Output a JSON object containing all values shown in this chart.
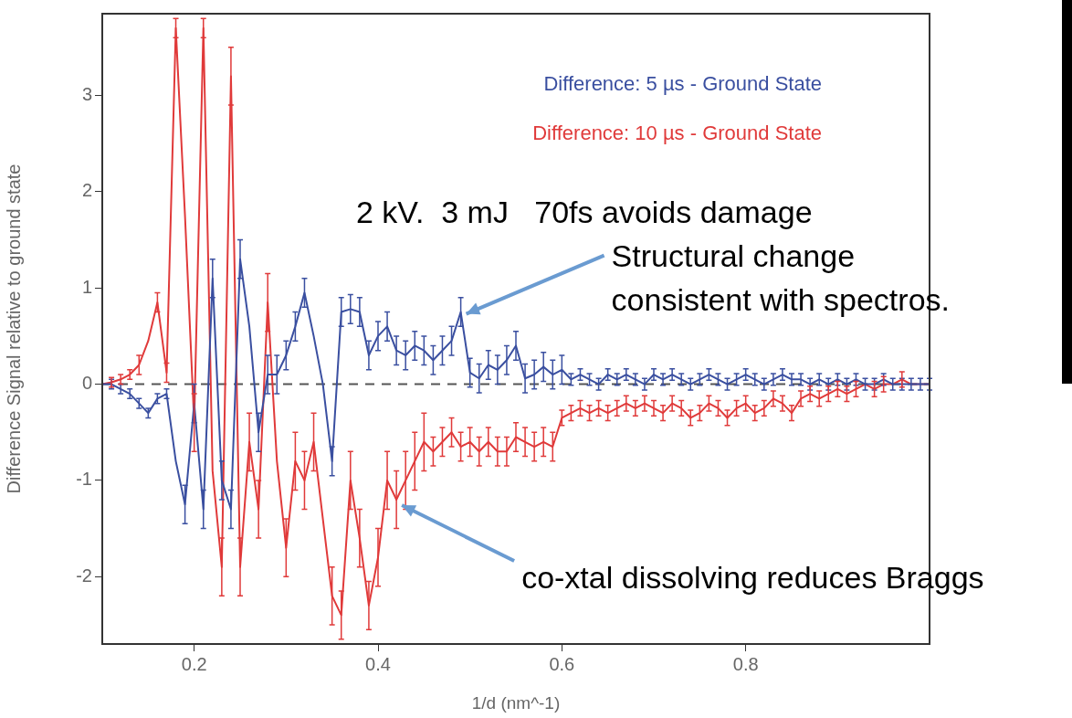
{
  "chart_data": {
    "type": "line",
    "xlabel": "1/d (nm^-1)",
    "ylabel": "Difference Signal relative to ground state",
    "x": [
      0.1,
      0.11,
      0.12,
      0.13,
      0.14,
      0.15,
      0.16,
      0.17,
      0.18,
      0.19,
      0.2,
      0.21,
      0.22,
      0.23,
      0.24,
      0.25,
      0.26,
      0.27,
      0.28,
      0.29,
      0.3,
      0.31,
      0.32,
      0.33,
      0.34,
      0.35,
      0.36,
      0.37,
      0.38,
      0.39,
      0.4,
      0.41,
      0.42,
      0.43,
      0.44,
      0.45,
      0.46,
      0.47,
      0.48,
      0.49,
      0.5,
      0.51,
      0.52,
      0.53,
      0.54,
      0.55,
      0.56,
      0.57,
      0.58,
      0.59,
      0.6,
      0.61,
      0.62,
      0.63,
      0.64,
      0.65,
      0.66,
      0.67,
      0.68,
      0.69,
      0.7,
      0.71,
      0.72,
      0.73,
      0.74,
      0.75,
      0.76,
      0.77,
      0.78,
      0.79,
      0.8,
      0.81,
      0.82,
      0.83,
      0.84,
      0.85,
      0.86,
      0.87,
      0.88,
      0.89,
      0.9,
      0.91,
      0.92,
      0.93,
      0.94,
      0.95,
      0.96,
      0.97,
      0.98,
      0.99,
      1.0
    ],
    "series": [
      {
        "name": "Difference: 5 µs - Ground State",
        "color": "#3a4fa0",
        "values": [
          0.0,
          0.0,
          -0.05,
          -0.1,
          -0.2,
          -0.3,
          -0.15,
          -0.1,
          -0.8,
          -1.25,
          -0.2,
          -1.3,
          1.1,
          -1.0,
          -1.3,
          1.3,
          0.6,
          -0.5,
          0.1,
          0.1,
          0.3,
          0.6,
          0.95,
          0.5,
          0.0,
          -0.8,
          0.75,
          0.78,
          0.75,
          0.3,
          0.5,
          0.6,
          0.35,
          0.3,
          0.4,
          0.35,
          0.25,
          0.35,
          0.45,
          0.75,
          0.12,
          0.06,
          0.2,
          0.15,
          0.25,
          0.4,
          0.06,
          0.1,
          0.18,
          0.1,
          0.15,
          0.05,
          0.1,
          0.05,
          0.0,
          0.1,
          0.05,
          0.1,
          0.05,
          0.0,
          0.1,
          0.05,
          0.1,
          0.05,
          0.0,
          0.05,
          0.1,
          0.05,
          0.0,
          0.05,
          0.1,
          0.05,
          0.0,
          0.05,
          0.1,
          0.05,
          0.05,
          0.0,
          0.05,
          0.0,
          0.05,
          0.0,
          0.05,
          0.0,
          0.0,
          0.05,
          0.0,
          0.0,
          0.0,
          0.0,
          0.0
        ],
        "errors": [
          null,
          0.05,
          0.05,
          0.05,
          0.05,
          0.05,
          0.05,
          0.05,
          null,
          0.2,
          0.2,
          0.2,
          0.2,
          0.2,
          0.2,
          0.2,
          null,
          0.2,
          0.2,
          0.2,
          0.15,
          0.15,
          0.15,
          null,
          null,
          0.15,
          0.15,
          0.15,
          0.15,
          0.15,
          0.15,
          0.15,
          0.15,
          0.15,
          0.15,
          0.15,
          0.15,
          0.15,
          0.15,
          0.15,
          0.15,
          0.15,
          0.15,
          0.15,
          0.15,
          0.15,
          0.15,
          0.15,
          0.15,
          0.15,
          0.15,
          0.06,
          0.06,
          0.06,
          0.06,
          0.06,
          0.06,
          0.06,
          0.06,
          0.06,
          0.06,
          0.06,
          0.06,
          0.06,
          0.06,
          0.06,
          0.06,
          0.06,
          0.06,
          0.06,
          0.06,
          0.06,
          0.06,
          0.06,
          0.06,
          0.06,
          0.06,
          0.06,
          0.06,
          0.06,
          0.06,
          0.06,
          0.06,
          0.06,
          0.06,
          0.06,
          0.06,
          0.06,
          0.06,
          0.06,
          0.06
        ]
      },
      {
        "name": "Difference: 10 µs - Ground State",
        "color": "#e03a3a",
        "values": [
          0.0,
          0.02,
          0.05,
          0.1,
          0.2,
          0.45,
          0.85,
          0.12,
          3.7,
          1.75,
          -0.4,
          3.7,
          -0.9,
          -1.9,
          3.2,
          -1.9,
          -0.6,
          -1.3,
          0.85,
          -0.8,
          -1.7,
          -0.8,
          -1.0,
          -0.6,
          -1.4,
          -2.2,
          -2.4,
          -1.0,
          -1.6,
          -2.3,
          -1.8,
          -1.0,
          -1.2,
          -1.0,
          -0.8,
          -0.6,
          -0.7,
          -0.6,
          -0.5,
          -0.65,
          -0.6,
          -0.7,
          -0.6,
          -0.7,
          -0.7,
          -0.55,
          -0.6,
          -0.65,
          -0.6,
          -0.65,
          -0.35,
          -0.3,
          -0.25,
          -0.3,
          -0.25,
          -0.3,
          -0.25,
          -0.2,
          -0.25,
          -0.2,
          -0.25,
          -0.3,
          -0.2,
          -0.25,
          -0.35,
          -0.3,
          -0.2,
          -0.25,
          -0.35,
          -0.25,
          -0.2,
          -0.3,
          -0.25,
          -0.15,
          -0.2,
          -0.3,
          -0.15,
          -0.1,
          -0.15,
          -0.1,
          -0.05,
          -0.1,
          -0.05,
          0.0,
          -0.05,
          0.0,
          0.0,
          0.05,
          0.0,
          0.0,
          0.0
        ],
        "errors": [
          null,
          0.05,
          0.05,
          0.05,
          0.1,
          null,
          0.1,
          0.1,
          0.1,
          null,
          0.3,
          0.1,
          null,
          0.3,
          0.3,
          0.3,
          0.3,
          0.3,
          0.3,
          null,
          0.3,
          0.3,
          0.3,
          0.3,
          null,
          0.3,
          0.25,
          0.3,
          0.3,
          0.25,
          0.3,
          0.3,
          0.3,
          0.3,
          0.3,
          0.3,
          0.15,
          0.15,
          0.15,
          0.15,
          0.15,
          0.15,
          0.15,
          0.15,
          0.15,
          0.15,
          0.15,
          0.15,
          0.15,
          0.15,
          0.08,
          0.08,
          0.08,
          0.08,
          0.08,
          0.08,
          0.08,
          0.08,
          0.08,
          0.08,
          0.08,
          0.08,
          0.08,
          0.08,
          0.08,
          0.08,
          0.08,
          0.08,
          0.08,
          0.08,
          0.08,
          0.08,
          0.08,
          0.08,
          0.08,
          0.08,
          0.08,
          0.08,
          0.08,
          0.08,
          0.08,
          0.08,
          0.08,
          null,
          0.08,
          0.08,
          null,
          0.08,
          null,
          null,
          null
        ]
      }
    ],
    "xlim": [
      0.1,
      1.0
    ],
    "xticks": [
      0.2,
      0.4,
      0.6,
      0.8
    ],
    "ylim": [
      -2.7,
      3.85
    ],
    "yticks": [
      -2,
      -1,
      0,
      1,
      2,
      3
    ],
    "grid": false,
    "legend": "top right",
    "line_style": "solid",
    "ref_lines": [
      {
        "axis": "y",
        "value": 0,
        "color": "#555555",
        "line_style": "dashed"
      }
    ],
    "annotations": [
      "2 kV.  3 mJ   70fs avoids damage",
      {
        "text": "Structural change\nconsistent with spectros.",
        "x": 0.49,
        "y": 0.75
      },
      {
        "text": "co-xtal dissolving reduces Braggs",
        "x": 0.42,
        "y": -1.2
      }
    ]
  }
}
